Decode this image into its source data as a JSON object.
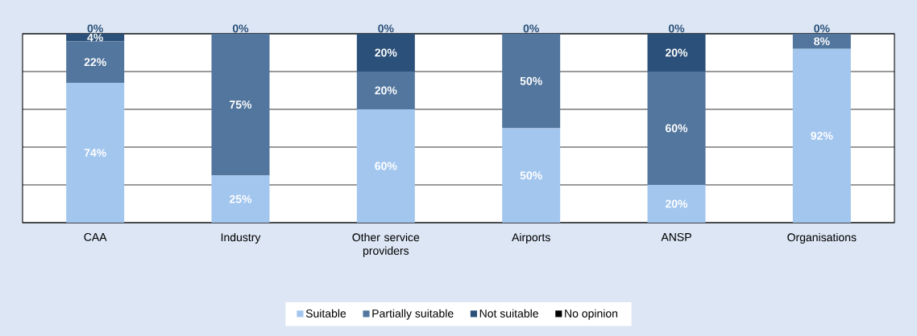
{
  "chart_data": {
    "type": "bar",
    "stacked": true,
    "categories": [
      "CAA",
      "Industry",
      "Other service providers",
      "Airports",
      "ANSP",
      "Organisations"
    ],
    "series": [
      {
        "name": "Suitable",
        "color": "#a3c6ef",
        "values": [
          74,
          25,
          60,
          50,
          20,
          92
        ],
        "value_labels": [
          "74%",
          "25%",
          "60%",
          "50%",
          "20%",
          "92%"
        ]
      },
      {
        "name": "Partially suitable",
        "color": "#52769e",
        "values": [
          22,
          75,
          20,
          50,
          60,
          8
        ],
        "value_labels": [
          "22%",
          "75%",
          "20%",
          "50%",
          "60%",
          "8%"
        ]
      },
      {
        "name": "Not suitable",
        "color": "#2b5079",
        "values": [
          4,
          0,
          20,
          0,
          20,
          0
        ],
        "value_labels": [
          "4%",
          null,
          "20%",
          null,
          "20%",
          null
        ]
      },
      {
        "name": "No opinion",
        "color": "#000000",
        "values": [
          0,
          0,
          0,
          0,
          0,
          0
        ],
        "value_labels": [
          "0%",
          "0%",
          "0%",
          "0%",
          "0%",
          "0%"
        ]
      }
    ],
    "ylim": [
      0,
      100
    ],
    "yticks": [
      {
        "value": 0,
        "label": null
      },
      {
        "value": 20,
        "label": null
      },
      {
        "value": 40,
        "label": null
      },
      {
        "value": 60,
        "label": null
      },
      {
        "value": 80,
        "label": null
      },
      {
        "value": 100,
        "label": null
      }
    ],
    "tick_labels": "x",
    "grid": "y",
    "legend": "bottom"
  }
}
